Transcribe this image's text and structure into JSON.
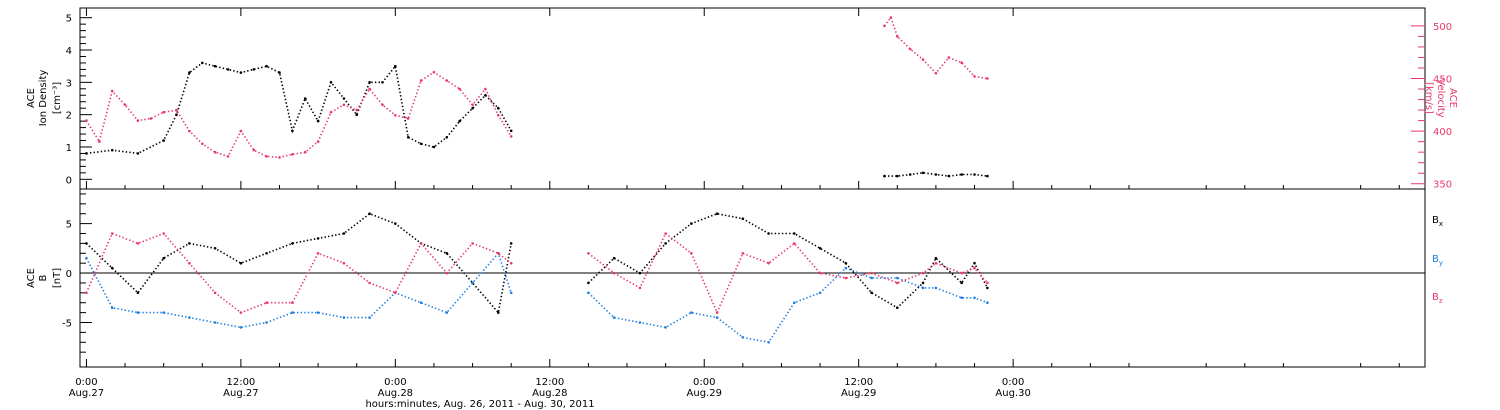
{
  "chart_data": [
    {
      "type": "scatter",
      "ylabel_left": [
        "ACE",
        "Ion Density",
        "[cm⁻³]"
      ],
      "ylabel_right": [
        "ACE",
        "Velocity",
        "[km/s]"
      ],
      "ylim_left": [
        -0.3,
        5.3
      ],
      "ylim_right": [
        345,
        517
      ],
      "yticks_left": [
        "0",
        "1",
        "2",
        "3",
        "4",
        "5"
      ],
      "yticks_right": [
        "350",
        "400",
        "450",
        "500"
      ],
      "colors": {
        "density": "#000000",
        "velocity": "#e8396a"
      },
      "series": [
        {
          "key": "density",
          "hours": [
            0,
            2,
            4,
            6,
            7,
            8,
            9,
            10,
            11,
            12,
            13,
            14,
            15,
            16,
            17,
            18,
            19,
            20,
            21,
            22,
            23,
            24,
            25,
            26,
            27,
            28,
            29,
            30,
            31,
            32,
            33,
            62,
            63,
            64,
            65,
            66,
            67,
            68,
            69,
            70
          ],
          "values": [
            0.8,
            0.9,
            0.8,
            1.2,
            2.0,
            3.3,
            3.6,
            3.5,
            3.4,
            3.3,
            3.4,
            3.5,
            3.3,
            1.5,
            2.5,
            1.8,
            3.0,
            2.5,
            2.0,
            3.0,
            3.0,
            3.5,
            1.3,
            1.1,
            1.0,
            1.3,
            1.8,
            2.2,
            2.6,
            2.2,
            1.5,
            0.1,
            0.1,
            0.15,
            0.2,
            0.15,
            0.1,
            0.15,
            0.15,
            0.1
          ]
        },
        {
          "key": "velocity",
          "hours": [
            0,
            1,
            2,
            3,
            4,
            5,
            6,
            7,
            8,
            9,
            10,
            11,
            12,
            13,
            14,
            15,
            16,
            17,
            18,
            19,
            20,
            21,
            22,
            23,
            24,
            25,
            26,
            27,
            28,
            29,
            30,
            31,
            32,
            33,
            62,
            62.5,
            63,
            64,
            65,
            66,
            67,
            68,
            69,
            70
          ],
          "values": [
            410,
            390,
            438,
            425,
            410,
            412,
            418,
            420,
            400,
            388,
            380,
            376,
            400,
            382,
            376,
            375,
            378,
            380,
            390,
            418,
            425,
            420,
            440,
            425,
            415,
            412,
            448,
            456,
            448,
            440,
            425,
            440,
            415,
            395,
            500,
            508,
            490,
            478,
            468,
            455,
            470,
            465,
            452,
            450
          ]
        }
      ]
    },
    {
      "type": "scatter",
      "ylabel": [
        "ACE",
        "B",
        "[nT]"
      ],
      "ylim": [
        -9.5,
        8.5
      ],
      "yticks": [
        "-5",
        "0",
        "5"
      ],
      "legend": [
        {
          "label": "B",
          "sub": "x",
          "color": "#000000"
        },
        {
          "label": "B",
          "sub": "y",
          "color": "#1e7fe0"
        },
        {
          "label": "B",
          "sub": "z",
          "color": "#e8396a"
        }
      ],
      "series": [
        {
          "key": "Bx",
          "hours": [
            0,
            2,
            4,
            6,
            8,
            10,
            12,
            14,
            16,
            18,
            20,
            22,
            24,
            26,
            28,
            30,
            32,
            33,
            39,
            41,
            43,
            45,
            47,
            49,
            51,
            53,
            55,
            57,
            59,
            61,
            63,
            65,
            66,
            68,
            69,
            70
          ],
          "values": [
            3.0,
            0.5,
            -2.0,
            1.5,
            3.0,
            2.5,
            1.0,
            2.0,
            3.0,
            3.5,
            4.0,
            6.0,
            5.0,
            3.0,
            2.0,
            -1.0,
            -4.0,
            3.0,
            -1.0,
            1.5,
            0.0,
            3.0,
            5.0,
            6.0,
            5.5,
            4.0,
            4.0,
            2.5,
            1.0,
            -2.0,
            -3.5,
            -1.0,
            1.5,
            -1.0,
            1.0,
            -1.5
          ]
        },
        {
          "key": "By",
          "hours": [
            0,
            2,
            4,
            6,
            8,
            10,
            12,
            14,
            16,
            18,
            20,
            22,
            24,
            26,
            28,
            30,
            32,
            33,
            39,
            41,
            43,
            45,
            47,
            49,
            51,
            53,
            55,
            57,
            59,
            61,
            63,
            65,
            66,
            68,
            69,
            70
          ],
          "values": [
            1.5,
            -3.5,
            -4.0,
            -4.0,
            -4.5,
            -5.0,
            -5.5,
            -5.0,
            -4.0,
            -4.0,
            -4.5,
            -4.5,
            -2.0,
            -3.0,
            -4.0,
            -1.0,
            2.0,
            -2.0,
            -2.0,
            -4.5,
            -5.0,
            -5.5,
            -4.0,
            -4.5,
            -6.5,
            -7.0,
            -3.0,
            -2.0,
            0.5,
            -0.5,
            -0.5,
            -1.5,
            -1.5,
            -2.5,
            -2.5,
            -3.0
          ]
        },
        {
          "key": "Bz",
          "hours": [
            0,
            2,
            4,
            6,
            8,
            10,
            12,
            14,
            16,
            18,
            20,
            22,
            24,
            26,
            28,
            30,
            32,
            33,
            39,
            41,
            43,
            45,
            47,
            49,
            51,
            53,
            55,
            57,
            59,
            61,
            63,
            65,
            66,
            68,
            69,
            70
          ],
          "values": [
            -2.0,
            4.0,
            3.0,
            4.0,
            1.0,
            -2.0,
            -4.0,
            -3.0,
            -3.0,
            2.0,
            1.0,
            -1.0,
            -2.0,
            3.0,
            0.0,
            3.0,
            2.0,
            1.0,
            2.0,
            0.0,
            -1.5,
            4.0,
            2.0,
            -4.0,
            2.0,
            1.0,
            3.0,
            0.0,
            -0.5,
            0.0,
            -1.0,
            0.0,
            1.0,
            0.0,
            0.5,
            -1.0
          ]
        }
      ]
    }
  ],
  "xaxis": {
    "xlim_hours": [
      -0.5,
      104
    ],
    "ticks": [
      {
        "hours": 0,
        "top": "0:00",
        "bottom": "Aug.27"
      },
      {
        "hours": 12,
        "top": "12:00",
        "bottom": "Aug.27"
      },
      {
        "hours": 24,
        "top": "0:00",
        "bottom": "Aug.28"
      },
      {
        "hours": 36,
        "top": "12:00",
        "bottom": "Aug.28"
      },
      {
        "hours": 48,
        "top": "0:00",
        "bottom": "Aug.29"
      },
      {
        "hours": 60,
        "top": "12:00",
        "bottom": "Aug.29"
      },
      {
        "hours": 72,
        "top": "0:00",
        "bottom": "Aug.30"
      }
    ],
    "label": "hours:minutes, Aug. 26, 2011 - Aug. 30, 2011"
  }
}
